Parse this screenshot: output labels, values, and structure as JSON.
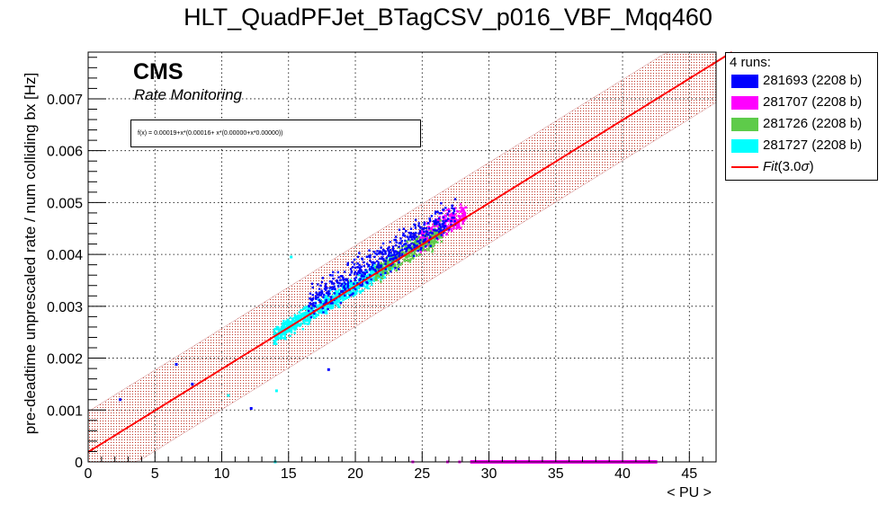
{
  "title": "HLT_QuadPFJet_BTagCSV_p016_VBF_Mqq460",
  "annotations": {
    "cms": "CMS",
    "subtitle": "Rate Monitoring",
    "fit_formula": "f(x) = 0.00019+x*(0.00016+ x*(0.00000+x*0.00000))"
  },
  "legend": {
    "header": "4 runs:",
    "items": [
      {
        "label": "281693 (2208 b)",
        "color": "#0000ff",
        "kind": "box"
      },
      {
        "label": "281707 (2208 b)",
        "color": "#ff00ff",
        "kind": "box"
      },
      {
        "label": "281726 (2208 b)",
        "color": "#5ecb4a",
        "kind": "box"
      },
      {
        "label": "281727 (2208 b)",
        "color": "#00ffff",
        "kind": "box"
      },
      {
        "label": "Fit(3.0σ)",
        "color": "#ff0000",
        "kind": "line"
      }
    ]
  },
  "chart_data": {
    "type": "scatter",
    "title": "HLT_QuadPFJet_BTagCSV_p016_VBF_Mqq460",
    "xlabel": "< PU >",
    "ylabel": "pre-deadtime unprescaled rate / num colliding bx [Hz]",
    "xlim": [
      0,
      47
    ],
    "ylim": [
      0,
      0.0079
    ],
    "xticks": [
      0,
      5,
      10,
      15,
      20,
      25,
      30,
      35,
      40,
      45
    ],
    "yticks": [
      0,
      0.001,
      0.002,
      0.003,
      0.004,
      0.005,
      0.006,
      0.007
    ],
    "ytick_labels": [
      "0",
      "0.001",
      "0.002",
      "0.003",
      "0.004",
      "0.005",
      "0.006",
      "0.007"
    ],
    "grid": true,
    "legend_position": "outside-right-top",
    "fit": {
      "a": 0.00019,
      "b": 0.00016,
      "band_sigma": 3.0,
      "band_halfwidth": 0.00078,
      "color": "#ff0000"
    },
    "series": [
      {
        "name": "281693 (2208 b)",
        "color": "#0000ff",
        "clusters": [
          {
            "x": [
              16.5,
              27.5
            ],
            "y_offset": 0.0002,
            "spread": 0.00045,
            "n": 520
          }
        ],
        "outliers": [
          [
            2.4,
            0.0012
          ],
          [
            6.6,
            0.00188
          ],
          [
            7.8,
            0.0015
          ],
          [
            12.2,
            0.00103
          ],
          [
            18.0,
            0.00178
          ]
        ]
      },
      {
        "name": "281707 (2208 b)",
        "color": "#ff00ff",
        "clusters": [
          {
            "x": [
              24.8,
              28.3
            ],
            "y_offset": 0.0001,
            "spread": 0.00035,
            "n": 260
          }
        ],
        "zero_segment": [
          28.6,
          42.6
        ],
        "outliers": [
          [
            24.3,
            0.0
          ],
          [
            26.9,
            0.0
          ],
          [
            27.8,
            0.0
          ]
        ]
      },
      {
        "name": "281726 (2208 b)",
        "color": "#5ecb4a",
        "clusters": [
          {
            "x": [
              21.5,
              26.5
            ],
            "y_offset": 0.0,
            "spread": 0.0003,
            "n": 320
          }
        ],
        "outliers": []
      },
      {
        "name": "281727 (2208 b)",
        "color": "#00ffff",
        "clusters": [
          {
            "x": [
              13.9,
              23.0
            ],
            "y_offset": 0.0,
            "spread": 0.00025,
            "n": 900
          }
        ],
        "outliers": [
          [
            10.5,
            0.00128
          ],
          [
            14.1,
            0.00137
          ],
          [
            14.0,
            0.0
          ],
          [
            15.2,
            0.00395
          ]
        ]
      }
    ]
  }
}
